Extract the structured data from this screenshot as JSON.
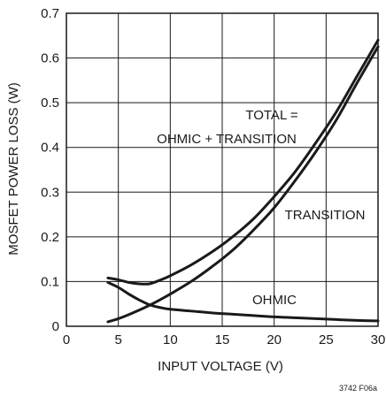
{
  "chart_data": {
    "type": "line",
    "xlabel": "INPUT VOLTAGE (V)",
    "ylabel": "MOSFET POWER LOSS (W)",
    "xlim": [
      0,
      30
    ],
    "ylim": [
      0,
      0.7
    ],
    "xticks": [
      0,
      5,
      10,
      15,
      20,
      25,
      30
    ],
    "xtick_labels": [
      "0",
      "5",
      "10",
      "15",
      "20",
      "25",
      "30"
    ],
    "yticks": [
      0,
      0.1,
      0.2,
      0.3,
      0.4,
      0.5,
      0.6,
      0.7
    ],
    "ytick_labels": [
      "0",
      "0.1",
      "0.2",
      "0.3",
      "0.4",
      "0.5",
      "0.6",
      "0.7"
    ],
    "grid": true,
    "series": [
      {
        "name": "TOTAL = OHMIC + TRANSITION",
        "x": [
          4,
          5,
          6,
          7,
          8,
          9,
          10,
          12,
          14,
          16,
          18,
          20,
          22,
          24,
          26,
          28,
          30
        ],
        "values": [
          0.108,
          0.104,
          0.098,
          0.095,
          0.095,
          0.103,
          0.113,
          0.137,
          0.166,
          0.2,
          0.24,
          0.29,
          0.345,
          0.41,
          0.48,
          0.56,
          0.64
        ]
      },
      {
        "name": "TRANSITION",
        "x": [
          4,
          5,
          6,
          7,
          8,
          9,
          10,
          12,
          14,
          16,
          18,
          20,
          22,
          24,
          26,
          28,
          30
        ],
        "values": [
          0.01,
          0.017,
          0.026,
          0.036,
          0.047,
          0.059,
          0.072,
          0.1,
          0.133,
          0.17,
          0.215,
          0.265,
          0.325,
          0.39,
          0.462,
          0.545,
          0.625
        ]
      },
      {
        "name": "OHMIC",
        "x": [
          4,
          5,
          6,
          7,
          8,
          9,
          10,
          12,
          14,
          16,
          18,
          20,
          22,
          24,
          26,
          28,
          30
        ],
        "values": [
          0.098,
          0.087,
          0.072,
          0.059,
          0.048,
          0.042,
          0.038,
          0.034,
          0.03,
          0.027,
          0.024,
          0.021,
          0.019,
          0.017,
          0.015,
          0.013,
          0.012
        ]
      }
    ],
    "annotations": {
      "total_line1": "TOTAL =",
      "total_line2": "OHMIC + TRANSITION",
      "transition": "TRANSITION",
      "ohmic": "OHMIC"
    }
  },
  "figure_id": "3742 F06a"
}
